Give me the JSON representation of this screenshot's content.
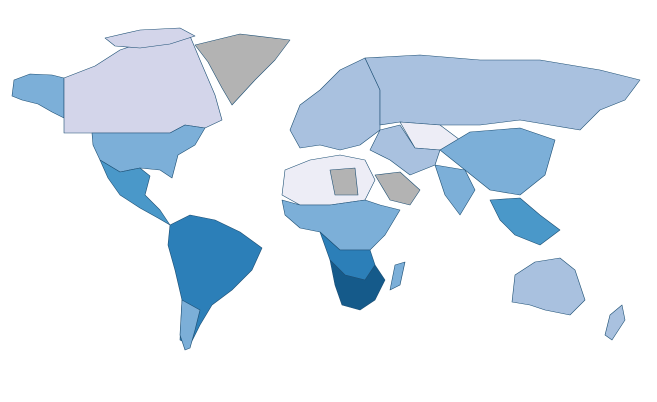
{
  "chart_data": {
    "type": "map",
    "colors": [
      "#d3d5ea",
      "#a9c1df",
      "#7cafd8",
      "#4a98c9",
      "#2c7fb8",
      "#155a8a",
      "#b3b3b3",
      "#ededf6"
    ]
  }
}
